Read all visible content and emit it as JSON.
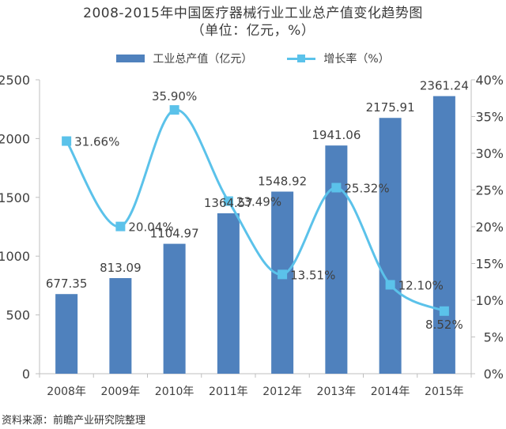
{
  "title_line1": "2008-2015年中国医疗器械行业工业总产值变化趋势图",
  "title_line2": "（单位：亿元，%）",
  "source": "资料来源：前瞻产业研究院整理",
  "colors": {
    "bar": "#4f81bd",
    "line": "#5bc2ea",
    "axis": "#bfbfbf",
    "text": "#404040"
  },
  "chart_data": {
    "type": "bar+line",
    "categories": [
      "2008年",
      "2009年",
      "2010年",
      "2011年",
      "2012年",
      "2013年",
      "2014年",
      "2015年"
    ],
    "series": [
      {
        "name": "工业总产值（亿元）",
        "type": "bar",
        "axis": "left",
        "values": [
          677.35,
          813.09,
          1104.97,
          1364.57,
          1548.92,
          1941.06,
          2175.91,
          2361.24
        ],
        "labels": [
          "677.35",
          "813.09",
          "1104.97",
          "1364.57",
          "1548.92",
          "1941.06",
          "2175.91",
          "2361.24"
        ]
      },
      {
        "name": "增长率（%）",
        "type": "line",
        "axis": "right",
        "smooth": true,
        "values": [
          31.66,
          20.04,
          35.9,
          23.49,
          13.51,
          25.32,
          12.1,
          8.52
        ],
        "labels": [
          "31.66%",
          "20.04%",
          "35.90%",
          "23.49%",
          "13.51%",
          "25.32%",
          "12.10%",
          "8.52%"
        ]
      }
    ],
    "y_left": {
      "range": [
        0,
        2500
      ],
      "ticks": [
        "0",
        "500",
        "1000",
        "1500",
        "2000",
        "2500"
      ]
    },
    "y_right": {
      "range": [
        0,
        40
      ],
      "ticks": [
        "0%",
        "5%",
        "10%",
        "15%",
        "20%",
        "25%",
        "30%",
        "35%",
        "40%"
      ]
    },
    "legend_position": "top",
    "grid": false
  }
}
